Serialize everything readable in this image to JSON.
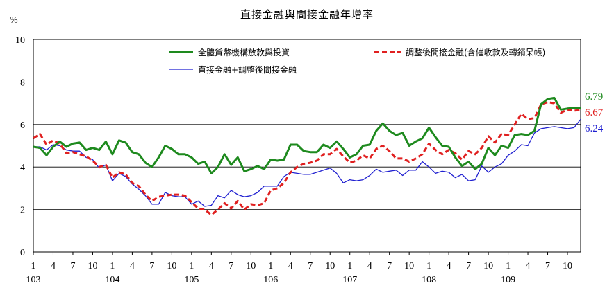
{
  "chart_data": {
    "type": "line",
    "title": "直接金融與間接金融年增率",
    "ylabel": "%",
    "ylim": [
      0,
      10
    ],
    "yticks": [
      0,
      2,
      4,
      6,
      8,
      10
    ],
    "grid": true,
    "x_major_labels": [
      "103",
      "104",
      "105",
      "106",
      "107",
      "108",
      "109"
    ],
    "x_month_ticks": [
      "1",
      "4",
      "7",
      "10"
    ],
    "legend": [
      {
        "key": "total",
        "label": "全體貨幣機構放款與投資"
      },
      {
        "key": "adjusted",
        "label": "調整後間接金融(含催收款及轉銷呆帳)"
      },
      {
        "key": "direct",
        "label": "直接金融+調整後間接金融"
      }
    ],
    "series": [
      {
        "key": "total",
        "name": "全體貨幣機構放款與投資",
        "color": "#1e8a1e",
        "style": "solid",
        "end_label": "6.79",
        "values": [
          4.95,
          4.9,
          4.55,
          4.95,
          5.2,
          4.95,
          5.1,
          5.15,
          4.8,
          4.9,
          4.8,
          5.2,
          4.6,
          5.25,
          5.15,
          4.7,
          4.6,
          4.2,
          4.0,
          4.45,
          5.0,
          4.85,
          4.6,
          4.6,
          4.45,
          4.15,
          4.25,
          3.7,
          4.0,
          4.6,
          4.1,
          4.45,
          3.8,
          3.9,
          4.05,
          3.9,
          4.35,
          4.3,
          4.35,
          5.05,
          5.05,
          4.75,
          4.7,
          4.7,
          5.05,
          4.9,
          5.2,
          4.85,
          4.45,
          4.6,
          5.0,
          5.05,
          5.7,
          6.05,
          5.7,
          5.5,
          5.6,
          5.0,
          5.2,
          5.35,
          5.85,
          5.4,
          5.0,
          4.95,
          4.45,
          4.05,
          4.25,
          3.9,
          4.15,
          4.9,
          4.55,
          5.0,
          4.9,
          5.5,
          5.55,
          5.5,
          5.7,
          6.95,
          7.2,
          7.25,
          6.7,
          6.75,
          6.78,
          6.79
        ]
      },
      {
        "key": "adjusted",
        "name": "調整後間接金融(含催收款及轉銷呆帳)",
        "color": "#e02020",
        "style": "dashed",
        "end_label": "6.67",
        "values": [
          5.35,
          5.55,
          5.05,
          5.25,
          5.1,
          4.65,
          4.7,
          4.6,
          4.5,
          4.3,
          4.0,
          4.1,
          3.5,
          3.75,
          3.65,
          3.25,
          3.1,
          2.7,
          2.4,
          2.6,
          2.65,
          2.7,
          2.7,
          2.65,
          2.35,
          2.05,
          2.0,
          1.75,
          2.0,
          2.3,
          2.05,
          2.4,
          2.0,
          2.25,
          2.2,
          2.3,
          2.9,
          3.0,
          3.25,
          3.75,
          4.0,
          4.15,
          4.2,
          4.3,
          4.6,
          4.6,
          4.85,
          4.5,
          4.2,
          4.3,
          4.55,
          4.4,
          4.85,
          5.0,
          4.75,
          4.4,
          4.4,
          4.25,
          4.4,
          4.6,
          5.1,
          4.8,
          4.6,
          4.8,
          4.65,
          4.35,
          4.75,
          4.6,
          4.9,
          5.45,
          5.15,
          5.55,
          5.5,
          6.0,
          6.5,
          6.25,
          6.3,
          6.95,
          7.05,
          7.0,
          6.55,
          6.7,
          6.65,
          6.67
        ]
      },
      {
        "key": "direct",
        "name": "直接金融+調整後間接金融",
        "color": "#1f1fd0",
        "style": "solid-thin",
        "end_label": "6.24",
        "values": [
          4.95,
          4.95,
          4.8,
          5.05,
          5.0,
          4.8,
          4.75,
          4.75,
          4.45,
          4.35,
          3.95,
          4.1,
          3.35,
          3.7,
          3.55,
          3.2,
          2.95,
          2.65,
          2.25,
          2.25,
          2.8,
          2.65,
          2.6,
          2.6,
          2.25,
          2.4,
          2.15,
          2.2,
          2.65,
          2.55,
          2.9,
          2.7,
          2.6,
          2.65,
          2.8,
          3.1,
          3.1,
          3.1,
          3.55,
          3.75,
          3.7,
          3.65,
          3.65,
          3.75,
          3.85,
          3.95,
          3.7,
          3.25,
          3.4,
          3.35,
          3.4,
          3.6,
          3.9,
          3.75,
          3.8,
          3.85,
          3.6,
          3.85,
          3.85,
          4.25,
          4.0,
          3.7,
          3.8,
          3.75,
          3.5,
          3.65,
          3.35,
          3.4,
          4.05,
          3.75,
          4.0,
          4.15,
          4.55,
          4.75,
          5.05,
          5.0,
          5.6,
          5.8,
          5.85,
          5.9,
          5.85,
          5.8,
          5.85,
          6.24
        ]
      }
    ]
  }
}
